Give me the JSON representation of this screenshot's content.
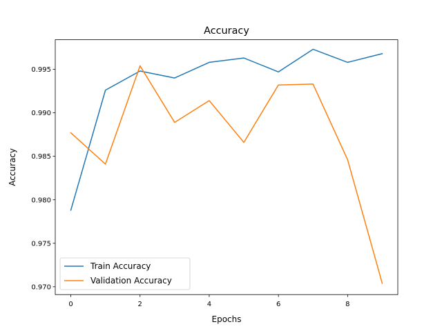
{
  "chart_data": {
    "type": "line",
    "title": "Accuracy",
    "xlabel": "Epochs",
    "ylabel": "Accuracy",
    "xlim": [
      -0.45,
      9.45
    ],
    "ylim": [
      0.9691,
      0.9984
    ],
    "xticks": [
      0,
      2,
      4,
      6,
      8
    ],
    "yticks": [
      0.97,
      0.975,
      0.98,
      0.985,
      0.99,
      0.995
    ],
    "ytick_labels": [
      "0.970",
      "0.975",
      "0.980",
      "0.985",
      "0.990",
      "0.995"
    ],
    "grid": false,
    "legend_position": "lower-left",
    "x": [
      0,
      1,
      2,
      3,
      4,
      5,
      6,
      7,
      8,
      9
    ],
    "series": [
      {
        "name": "Train Accuracy",
        "color": "#1f77b4",
        "values": [
          0.9788,
          0.9926,
          0.9948,
          0.994,
          0.9958,
          0.9963,
          0.9947,
          0.9973,
          0.9958,
          0.9968
        ]
      },
      {
        "name": "Validation Accuracy",
        "color": "#ff7f0e",
        "values": [
          0.9877,
          0.9841,
          0.9954,
          0.9889,
          0.9914,
          0.9866,
          0.9932,
          0.9933,
          0.9846,
          0.9704
        ]
      }
    ]
  }
}
